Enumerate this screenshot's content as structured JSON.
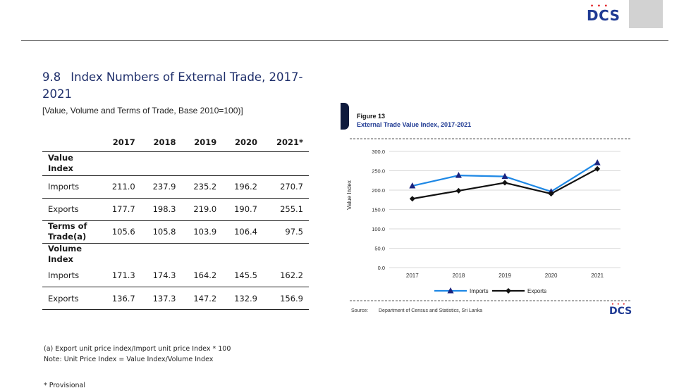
{
  "header": {
    "logo": "DCS",
    "logo_dots": "• • •"
  },
  "section": {
    "number": "9.8",
    "title": "Index Numbers of External Trade, 2017-2021",
    "subtitle": "[Value, Volume and Terms of Trade, Base 2010=100)]"
  },
  "table": {
    "columns": [
      "2017",
      "2018",
      "2019",
      "2020",
      "2021*"
    ],
    "rows": [
      {
        "label": "Value Index",
        "values": [
          "",
          "",
          "",
          "",
          ""
        ]
      },
      {
        "label": "Imports",
        "values": [
          "211.0",
          "237.9",
          "235.2",
          "196.2",
          "270.7"
        ]
      },
      {
        "label": "Exports",
        "values": [
          "177.7",
          "198.3",
          "219.0",
          "190.7",
          "255.1"
        ]
      },
      {
        "label": "Terms of Trade(a)",
        "values": [
          "105.6",
          "105.8",
          "103.9",
          "106.4",
          "97.5"
        ]
      },
      {
        "label": "Volume Index",
        "values": [
          "",
          "",
          "",
          "",
          ""
        ]
      },
      {
        "label": "Imports",
        "values": [
          "171.3",
          "174.3",
          "164.2",
          "145.5",
          "162.2"
        ]
      },
      {
        "label": "Exports",
        "values": [
          "136.7",
          "137.3",
          "147.2",
          "132.9",
          "156.9"
        ]
      }
    ]
  },
  "notes": {
    "line1": "(a) Export unit price index/Import unit price Index * 100",
    "line2": "Note: Unit Price Index = Value Index/Volume Index",
    "provisional": "* Provisional"
  },
  "figure": {
    "number": "Figure 13",
    "source_label": "Source:",
    "source_text": "Department of Census and Statistics, Sri Lanka",
    "logo": "DCS"
  },
  "chart_data": {
    "type": "line",
    "title": "External Trade Value Index, 2017-2021",
    "ylabel": "Value Index",
    "xlabel": "",
    "ylim": [
      0,
      300
    ],
    "yticks": [
      "0.0",
      "50.0",
      "100.0",
      "150.0",
      "200.0",
      "250.0",
      "300.0"
    ],
    "categories": [
      "2017",
      "2018",
      "2019",
      "2020",
      "2021"
    ],
    "grid": true,
    "legend": "bottom",
    "series": [
      {
        "name": "Imports",
        "values": [
          211.0,
          237.9,
          235.2,
          196.2,
          270.7
        ],
        "color": "#1e88e5",
        "marker": "triangle",
        "marker_color": "#1a237e"
      },
      {
        "name": "Exports",
        "values": [
          177.7,
          198.3,
          219.0,
          190.7,
          255.1
        ],
        "color": "#111111",
        "marker": "diamond",
        "marker_color": "#111111"
      }
    ]
  }
}
